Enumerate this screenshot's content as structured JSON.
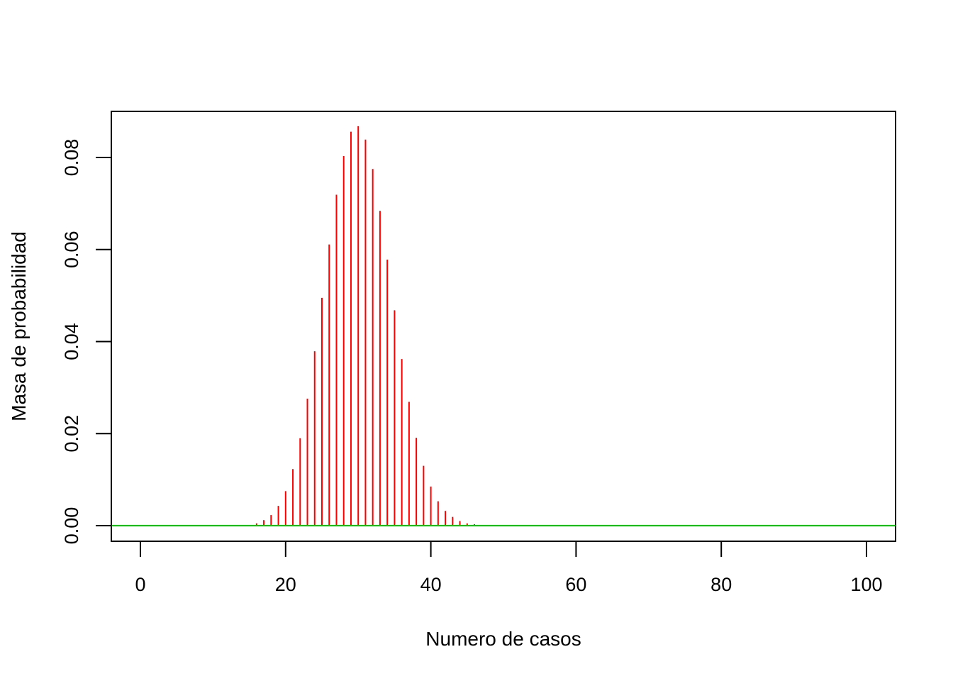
{
  "chart_data": {
    "type": "bar",
    "title": "",
    "xlabel": "Numero de casos",
    "ylabel": "Masa de probabilidad",
    "xlim": [
      0,
      100
    ],
    "ylim": [
      0,
      0.087
    ],
    "x_ticks": [
      "0",
      "20",
      "40",
      "60",
      "80",
      "100"
    ],
    "y_ticks": [
      "0.00",
      "0.02",
      "0.04",
      "0.06",
      "0.08"
    ],
    "grid": false,
    "series": [
      {
        "color": "#ff0000",
        "x": [
          16,
          17,
          18,
          19,
          20,
          21,
          22,
          23,
          24,
          25,
          26,
          27,
          28,
          29,
          30,
          31,
          32,
          33,
          34,
          35,
          36,
          37,
          38,
          39,
          40,
          41,
          42,
          43,
          44,
          45,
          46
        ],
        "values": [
          0.0005,
          0.0012,
          0.0023,
          0.0043,
          0.0075,
          0.0123,
          0.019,
          0.0276,
          0.0379,
          0.0495,
          0.0611,
          0.0719,
          0.0803,
          0.0856,
          0.0868,
          0.0839,
          0.0775,
          0.0684,
          0.0578,
          0.0468,
          0.0362,
          0.0269,
          0.0191,
          0.013,
          0.0085,
          0.0053,
          0.0032,
          0.0019,
          0.001,
          0.0005,
          0.0003
        ]
      }
    ],
    "baseline": {
      "y": 0,
      "color": "#00cc00"
    }
  }
}
